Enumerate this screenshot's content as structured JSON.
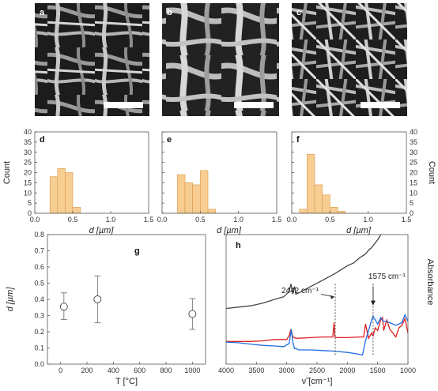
{
  "images": {
    "sem": [
      {
        "label": "a"
      },
      {
        "label": "b"
      },
      {
        "label": "c"
      }
    ]
  },
  "colors": {
    "bar_fill": "#f8cd92",
    "bar_stroke": "#d59a4a",
    "ftir_black": "#444444",
    "ftir_red": "#e02020",
    "ftir_blue": "#1f6ce0"
  },
  "chart_data": [
    {
      "type": "bar",
      "panel": "d",
      "bin_edges": [
        0.2,
        0.3,
        0.4,
        0.5,
        0.6
      ],
      "values": [
        18,
        22,
        20,
        3
      ],
      "xlabel": "d [µm]",
      "ylabel": "Count",
      "xlim": [
        0,
        1.5
      ],
      "ylim": [
        0,
        40
      ],
      "xticks": [
        "0.0",
        "0.5",
        "1.0",
        "1.5"
      ],
      "yticks": [
        "0",
        "5",
        "10",
        "15",
        "20",
        "25",
        "30",
        "35",
        "40"
      ]
    },
    {
      "type": "bar",
      "panel": "e",
      "bin_edges": [
        0.2,
        0.3,
        0.4,
        0.5,
        0.6,
        0.7
      ],
      "values": [
        19,
        15,
        14,
        21,
        2
      ],
      "xlabel": "d [µm]",
      "ylabel": "",
      "xlim": [
        0,
        1.5
      ],
      "ylim": [
        0,
        40
      ],
      "xticks": [
        "0.0",
        "0.5",
        "1.0",
        "1.5"
      ],
      "yticks": []
    },
    {
      "type": "bar",
      "panel": "f",
      "bin_edges": [
        0.1,
        0.2,
        0.3,
        0.4,
        0.5,
        0.6,
        0.7
      ],
      "values": [
        2,
        29,
        14,
        9,
        3,
        1
      ],
      "xlabel": "d [µm]",
      "ylabel": "Count",
      "xlim": [
        0,
        1.5
      ],
      "ylim": [
        0,
        40
      ],
      "xticks": [
        "0.0",
        "0.5",
        "1.0",
        "1.5"
      ],
      "yticks": [
        "0",
        "5",
        "10",
        "15",
        "20",
        "25",
        "30",
        "35",
        "40"
      ]
    },
    {
      "type": "scatter",
      "panel": "g",
      "x": [
        25,
        280,
        1000
      ],
      "y": [
        0.355,
        0.4,
        0.31
      ],
      "yerr_low": [
        0.275,
        0.255,
        0.215
      ],
      "yerr_high": [
        0.44,
        0.545,
        0.405
      ],
      "xlabel": "T [°C]",
      "ylabel": "d [µm]",
      "xlim": [
        -100,
        1100
      ],
      "ylim": [
        0,
        0.8
      ],
      "xticks": [
        "0",
        "200",
        "400",
        "600",
        "800",
        "1000"
      ],
      "yticks": [
        "0.0",
        "0.1",
        "0.2",
        "0.3",
        "0.4",
        "0.5",
        "0.6",
        "0.7",
        "0.8"
      ]
    },
    {
      "type": "line",
      "panel": "h",
      "xlabel": "ν̃ [cm⁻¹]",
      "ylabel": "Absorbance",
      "xlim": [
        4000,
        1000
      ],
      "xticks": [
        "4000",
        "3500",
        "3000",
        "2500",
        "2000",
        "1500",
        "1000"
      ],
      "annotations": [
        {
          "text": "2442 cm⁻¹",
          "x": 2200
        },
        {
          "text": "1575 cm⁻¹",
          "x": 1575
        }
      ],
      "series": [
        {
          "color": "#444444",
          "x": [
            4000,
            3800,
            3600,
            3400,
            3200,
            3050,
            2960,
            2930,
            2900,
            2870,
            2850,
            2800,
            2600,
            2400,
            2200,
            2000,
            1900,
            1800,
            1700,
            1650,
            1600,
            1500,
            1420
          ],
          "y": [
            0.43,
            0.44,
            0.45,
            0.47,
            0.5,
            0.52,
            0.56,
            0.62,
            0.54,
            0.6,
            0.54,
            0.55,
            0.6,
            0.65,
            0.7,
            0.76,
            0.78,
            0.82,
            0.85,
            0.88,
            0.9,
            0.96,
            1.02
          ]
        },
        {
          "color": "#e02020",
          "x": [
            4000,
            3800,
            3600,
            3400,
            3200,
            3000,
            2960,
            2930,
            2900,
            2850,
            2800,
            2600,
            2400,
            2240,
            2220,
            2205,
            2180,
            2000,
            1800,
            1730,
            1700,
            1650,
            1600,
            1575,
            1540,
            1500,
            1450,
            1420,
            1400,
            1350,
            1300,
            1250,
            1200,
            1150,
            1100,
            1050,
            1000
          ],
          "y": [
            0.175,
            0.175,
            0.175,
            0.18,
            0.19,
            0.19,
            0.22,
            0.27,
            0.21,
            0.2,
            0.2,
            0.205,
            0.21,
            0.21,
            0.32,
            0.21,
            0.205,
            0.205,
            0.21,
            0.21,
            0.31,
            0.2,
            0.24,
            0.22,
            0.28,
            0.26,
            0.34,
            0.36,
            0.26,
            0.34,
            0.27,
            0.24,
            0.21,
            0.28,
            0.3,
            0.35,
            0.24
          ]
        },
        {
          "color": "#1f6ce0",
          "x": [
            4000,
            3800,
            3600,
            3400,
            3200,
            3050,
            2960,
            2940,
            2925,
            2900,
            2870,
            2850,
            2800,
            2600,
            2400,
            2200,
            2000,
            1850,
            1750,
            1700,
            1650,
            1600,
            1575,
            1550,
            1500,
            1450,
            1420,
            1400,
            1350,
            1300,
            1200,
            1100,
            1050,
            1000
          ],
          "y": [
            0.17,
            0.165,
            0.155,
            0.145,
            0.14,
            0.135,
            0.16,
            0.22,
            0.27,
            0.17,
            0.12,
            0.12,
            0.11,
            0.11,
            0.105,
            0.1,
            0.09,
            0.08,
            0.07,
            0.18,
            0.26,
            0.34,
            0.37,
            0.35,
            0.31,
            0.36,
            0.34,
            0.33,
            0.33,
            0.32,
            0.3,
            0.32,
            0.38,
            0.33
          ]
        }
      ]
    }
  ]
}
